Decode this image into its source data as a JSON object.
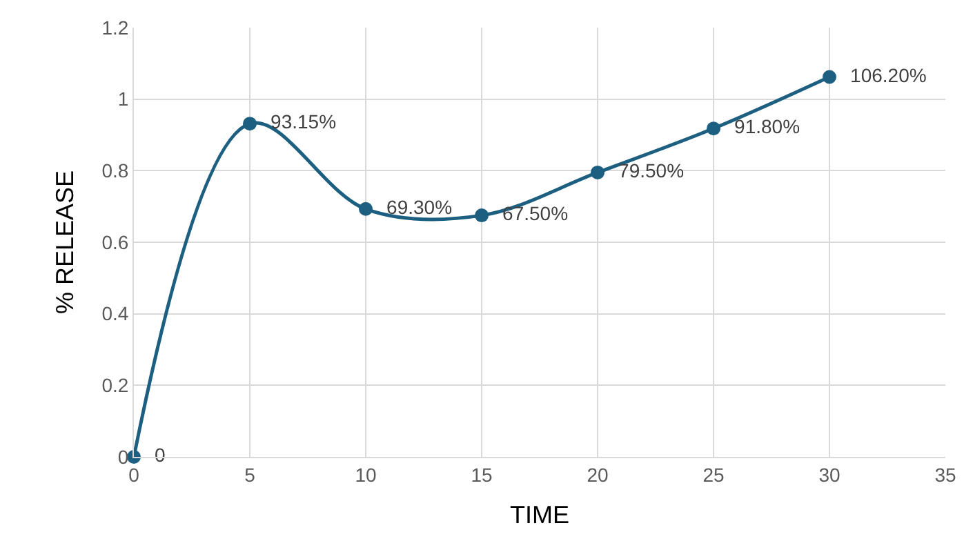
{
  "chart_data": {
    "type": "line",
    "xlabel": "TIME",
    "ylabel": "% RELEASE",
    "x": [
      0,
      5,
      10,
      15,
      20,
      25,
      30
    ],
    "series": [
      {
        "color": "#1c5f80",
        "values": [
          0,
          0.9315,
          0.693,
          0.675,
          0.795,
          0.918,
          1.062
        ],
        "value_labels": [
          "0",
          "93.15%",
          "69.30%",
          "67.50%",
          "79.50%",
          "91.80%",
          "106.20%"
        ]
      }
    ],
    "xlim": [
      0,
      35
    ],
    "xticks": [
      0,
      5,
      10,
      15,
      20,
      25,
      30,
      35
    ],
    "ylim": [
      0,
      1.2
    ],
    "yticks": [
      0,
      0.2,
      0.4,
      0.6,
      0.8,
      1,
      1.2
    ],
    "grid": true,
    "marker": "circle",
    "line_style": "solid"
  }
}
